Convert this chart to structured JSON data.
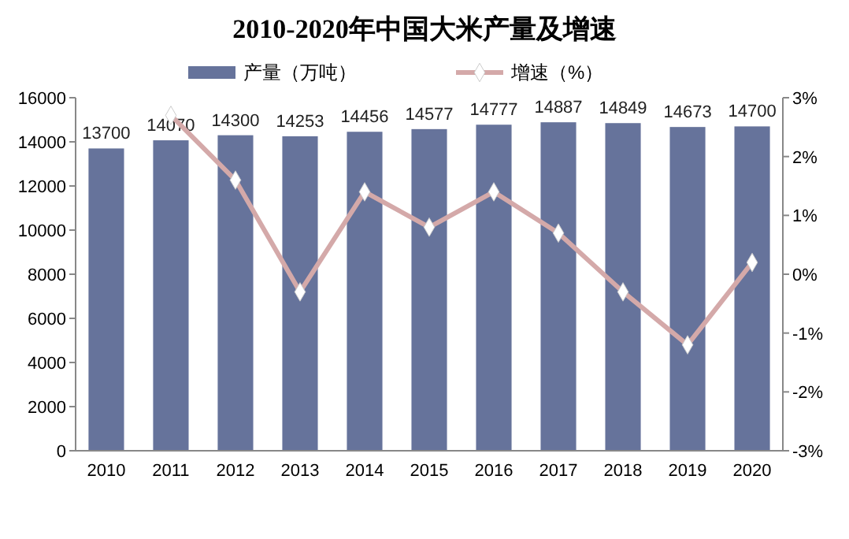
{
  "chart_data": {
    "type": "bar",
    "title": "2010-2020年中国大米产量及增速",
    "categories": [
      "2010",
      "2011",
      "2012",
      "2013",
      "2014",
      "2015",
      "2016",
      "2017",
      "2018",
      "2019",
      "2020"
    ],
    "series": [
      {
        "name": "产量（万吨）",
        "color": "#66739b",
        "values": [
          13700,
          14070,
          14300,
          14253,
          14456,
          14577,
          14777,
          14887,
          14849,
          14673,
          14700
        ],
        "data_labels": true
      },
      {
        "name": "增速（%）",
        "type": "line",
        "axis": "y2",
        "color": "#d4a9a9",
        "marker": "diamond",
        "values": [
          null,
          2.7,
          1.6,
          -0.3,
          1.4,
          0.8,
          1.4,
          0.7,
          -0.3,
          -1.2,
          0.2
        ]
      }
    ],
    "ylim": [
      0,
      16000
    ],
    "yticks": [
      0,
      2000,
      4000,
      6000,
      8000,
      10000,
      12000,
      14000,
      16000
    ],
    "y2lim": [
      -3,
      3
    ],
    "y2ticks": [
      {
        "value": -3,
        "label": "-3%"
      },
      {
        "value": -2,
        "label": "-2%"
      },
      {
        "value": -1,
        "label": "-1%"
      },
      {
        "value": 0,
        "label": "0%"
      },
      {
        "value": 1,
        "label": "1%"
      },
      {
        "value": 2,
        "label": "2%"
      },
      {
        "value": 3,
        "label": "3%"
      }
    ],
    "legend": "top",
    "grid": false
  }
}
